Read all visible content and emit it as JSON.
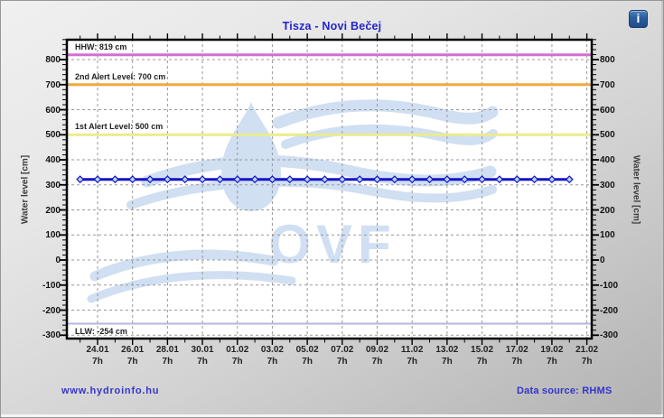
{
  "header": {
    "title": "Tisza - Novi Bečej",
    "title_color": "#2323cc",
    "info_icon": "i"
  },
  "footer": {
    "site": "www.hydroinfo.hu",
    "source": "Data source: RHMS",
    "link_color": "#3434cc"
  },
  "watermark": {
    "text": "OVF",
    "color": "#d0dff2"
  },
  "chart_data": {
    "type": "line",
    "title": "Tisza - Novi Bečej",
    "ylabel_left": "Water level [cm]",
    "ylabel_right": "Water level [cm]",
    "ylim": [
      -317,
      883
    ],
    "y_ticks": [
      800,
      700,
      600,
      500,
      400,
      300,
      200,
      100,
      0,
      -100,
      -200,
      -300
    ],
    "y_minor_step": 20,
    "grid": true,
    "grid_color": "#999999",
    "frame_color": "#000000",
    "x_day_range": [
      -1.81,
      28.33
    ],
    "x_tick_sublabel": "7h",
    "x_major_ticks": [
      {
        "day": 0,
        "label": "24.01"
      },
      {
        "day": 2,
        "label": "26.01"
      },
      {
        "day": 4,
        "label": "28.01"
      },
      {
        "day": 6,
        "label": "30.01"
      },
      {
        "day": 8,
        "label": "01.02"
      },
      {
        "day": 10,
        "label": "03.02"
      },
      {
        "day": 12,
        "label": "05.02"
      },
      {
        "day": 14,
        "label": "07.02"
      },
      {
        "day": 16,
        "label": "09.02"
      },
      {
        "day": 18,
        "label": "11.02"
      },
      {
        "day": 20,
        "label": "13.02"
      },
      {
        "day": 22,
        "label": "15.02"
      },
      {
        "day": 24,
        "label": "17.02"
      },
      {
        "day": 26,
        "label": "19.02"
      },
      {
        "day": 28,
        "label": "21.02"
      }
    ],
    "reference_lines": [
      {
        "name": "hhw",
        "label": "HHW: 819 cm",
        "value": 819,
        "color": "#d46ed4",
        "width": 3,
        "label_below": false
      },
      {
        "name": "alert-2nd",
        "label": "2nd Alert Level: 700 cm",
        "value": 700,
        "color": "#edaa3c",
        "width": 3,
        "label_below": false
      },
      {
        "name": "alert-1st",
        "label": "1st Alert Level: 500 cm",
        "value": 500,
        "color": "#ebeb8e",
        "width": 3,
        "label_below": false
      },
      {
        "name": "llw",
        "label": "LLW: -254 cm",
        "value": -254,
        "color": "#b6b6de",
        "width": 2,
        "label_below": true
      }
    ],
    "series": [
      {
        "name": "water-level",
        "color": "#1414c8",
        "marker_fill": "#b9d3ed",
        "start_day": -1,
        "dates": [
          "23.01",
          "24.01",
          "25.01",
          "26.01",
          "27.01",
          "28.01",
          "29.01",
          "30.01",
          "31.01",
          "01.02",
          "02.02",
          "03.02",
          "04.02",
          "05.02",
          "06.02",
          "07.02",
          "08.02",
          "09.02",
          "10.02",
          "11.02",
          "12.02",
          "13.02",
          "14.02",
          "15.02",
          "16.02",
          "17.02",
          "18.02",
          "19.02",
          "20.02"
        ],
        "values": [
          322,
          322,
          322,
          322,
          322,
          322,
          322,
          322,
          322,
          322,
          322,
          322,
          322,
          322,
          322,
          322,
          322,
          322,
          322,
          322,
          322,
          322,
          322,
          322,
          322,
          322,
          322,
          322,
          322
        ]
      }
    ]
  }
}
